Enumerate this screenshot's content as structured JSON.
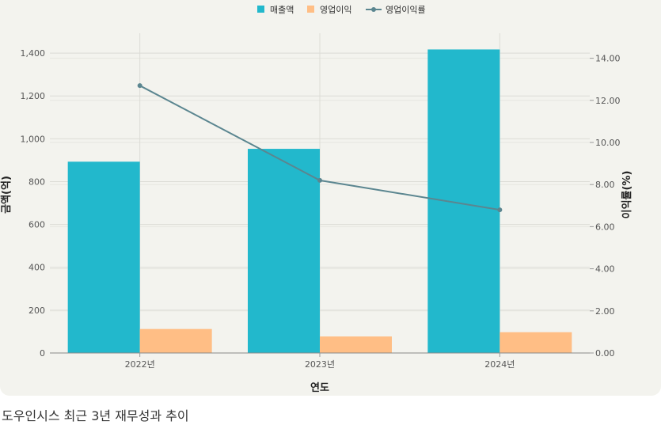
{
  "caption": "도우인시스 최근 3년 재무성과 추이",
  "chart_data": {
    "type": "bar",
    "categories": [
      "2022년",
      "2023년",
      "2024년"
    ],
    "series": [
      {
        "name": "매출액",
        "kind": "bar",
        "axis": "left",
        "color": "#22b8cc",
        "values": [
          893,
          953,
          1417
        ]
      },
      {
        "name": "영업이익",
        "kind": "bar",
        "axis": "left",
        "color": "#ffbe85",
        "values": [
          112,
          77,
          97
        ]
      },
      {
        "name": "영업이익률",
        "kind": "line",
        "axis": "right",
        "color": "#5b8690",
        "values": [
          12.7,
          8.2,
          6.8
        ]
      }
    ],
    "xlabel": "연도",
    "ylabel": "금액(억)",
    "y2label": "이익률(%)",
    "ylim": [
      0,
      1500
    ],
    "yticks": [
      0,
      200,
      400,
      600,
      800,
      1000,
      1200,
      1400
    ],
    "ytick_labels": [
      "0",
      "200",
      "400",
      "600",
      "800",
      "1,000",
      "1,200",
      "1,400"
    ],
    "y2lim": [
      0,
      15
    ],
    "y2ticks": [
      0,
      2,
      4,
      6,
      8,
      10,
      12,
      14
    ],
    "y2tick_labels": [
      "0.00",
      "2.00",
      "4.00",
      "6.00",
      "8.00",
      "10.00",
      "12.00",
      "14.00"
    ],
    "grid": true,
    "legend_position": "top-center"
  }
}
